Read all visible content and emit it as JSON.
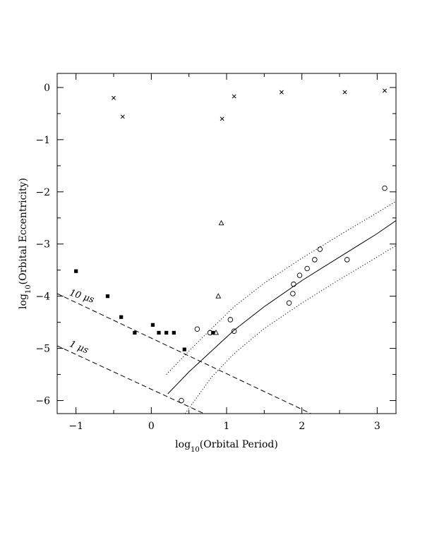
{
  "chart_data": {
    "type": "scatter",
    "xlabel": {
      "prefix": "log",
      "sub": "10",
      "suffix": "(Orbital Period)"
    },
    "ylabel": {
      "prefix": "log",
      "sub": "10",
      "suffix": "(Orbital Eccentricity)"
    },
    "xlim": [
      -1.25,
      3.25
    ],
    "ylim": [
      -6.25,
      0.27
    ],
    "x_ticks": [
      {
        "value": -1,
        "label": "−1"
      },
      {
        "value": 0,
        "label": "0"
      },
      {
        "value": 1,
        "label": "1"
      },
      {
        "value": 2,
        "label": "2"
      },
      {
        "value": 3,
        "label": "3"
      }
    ],
    "y_ticks": [
      {
        "value": 0,
        "label": "0"
      },
      {
        "value": -1,
        "label": "−1"
      },
      {
        "value": -2,
        "label": "−2"
      },
      {
        "value": -3,
        "label": "−3"
      },
      {
        "value": -4,
        "label": "−4"
      },
      {
        "value": -5,
        "label": "−5"
      },
      {
        "value": -6,
        "label": "−6"
      }
    ],
    "grid": false,
    "series": [
      {
        "marker": "cross",
        "points": [
          [
            -0.5,
            -0.2
          ],
          [
            -0.38,
            -0.56
          ],
          [
            0.94,
            -0.6
          ],
          [
            1.1,
            -0.17
          ],
          [
            1.73,
            -0.09
          ],
          [
            2.57,
            -0.09
          ],
          [
            3.1,
            -0.06
          ]
        ]
      },
      {
        "marker": "filled-square",
        "points": [
          [
            -1.0,
            -3.52
          ],
          [
            -0.58,
            -4.0
          ],
          [
            -0.4,
            -4.4
          ],
          [
            -0.22,
            -4.7
          ],
          [
            0.02,
            -4.55
          ],
          [
            0.1,
            -4.7
          ],
          [
            0.2,
            -4.7
          ],
          [
            0.3,
            -4.7
          ],
          [
            0.44,
            -5.02
          ],
          [
            0.82,
            -4.7
          ]
        ]
      },
      {
        "marker": "triangle",
        "points": [
          [
            0.93,
            -2.6
          ],
          [
            0.89,
            -4.0
          ],
          [
            0.86,
            -4.7
          ]
        ]
      },
      {
        "marker": "open-circle",
        "points": [
          [
            0.4,
            -6.0
          ],
          [
            0.61,
            -4.63
          ],
          [
            0.78,
            -4.7
          ],
          [
            1.05,
            -4.45
          ],
          [
            1.1,
            -4.67
          ],
          [
            1.83,
            -4.13
          ],
          [
            1.88,
            -3.95
          ],
          [
            1.89,
            -3.77
          ],
          [
            1.97,
            -3.6
          ],
          [
            2.07,
            -3.47
          ],
          [
            2.17,
            -3.3
          ],
          [
            2.24,
            -3.1
          ],
          [
            2.6,
            -3.3
          ],
          [
            3.1,
            -1.93
          ]
        ]
      }
    ],
    "curves": [
      {
        "style": "solid",
        "points": [
          [
            0.22,
            -5.87
          ],
          [
            0.5,
            -5.45
          ],
          [
            0.8,
            -5.05
          ],
          [
            1.1,
            -4.65
          ],
          [
            1.5,
            -4.2
          ],
          [
            2.0,
            -3.7
          ],
          [
            2.5,
            -3.25
          ],
          [
            3.0,
            -2.8
          ],
          [
            3.25,
            -2.55
          ]
        ]
      },
      {
        "style": "dotted",
        "points": [
          [
            0.2,
            -5.5
          ],
          [
            0.5,
            -5.05
          ],
          [
            0.8,
            -4.62
          ],
          [
            1.1,
            -4.2
          ],
          [
            1.5,
            -3.75
          ],
          [
            2.0,
            -3.27
          ],
          [
            2.5,
            -2.83
          ],
          [
            3.0,
            -2.4
          ],
          [
            3.25,
            -2.18
          ]
        ]
      },
      {
        "style": "dotted",
        "points": [
          [
            0.45,
            -6.25
          ],
          [
            0.8,
            -5.55
          ],
          [
            1.1,
            -5.1
          ],
          [
            1.5,
            -4.62
          ],
          [
            2.0,
            -4.13
          ],
          [
            2.5,
            -3.68
          ],
          [
            3.0,
            -3.25
          ],
          [
            3.25,
            -3.03
          ]
        ]
      },
      {
        "style": "dashed",
        "points": [
          [
            -1.25,
            -3.95
          ],
          [
            2.12,
            -6.25
          ]
        ]
      },
      {
        "style": "dashed",
        "points": [
          [
            -1.25,
            -4.95
          ],
          [
            0.7,
            -6.25
          ]
        ]
      }
    ],
    "annotations": [
      {
        "text": "10",
        "unit": "μs",
        "x": -1.0,
        "y": -3.95,
        "angle": 18
      },
      {
        "text": "1",
        "unit": "μs",
        "x": -1.0,
        "y": -4.93,
        "angle": 22
      }
    ]
  }
}
